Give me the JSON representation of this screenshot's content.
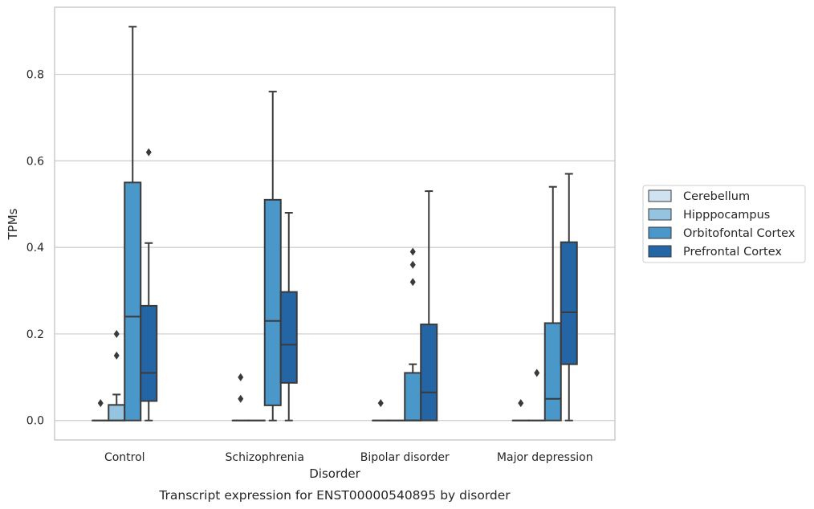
{
  "chart_data": {
    "type": "box",
    "caption": "Transcript expression for ENST00000540895 by disorder",
    "xlabel": "Disorder",
    "ylabel": "TPMs",
    "ylim": [
      -0.045,
      0.955
    ],
    "y_ticks": [
      0.0,
      0.2,
      0.4,
      0.6,
      0.8
    ],
    "y_tick_labels": [
      "0.0",
      "0.2",
      "0.4",
      "0.6",
      "0.8"
    ],
    "grid": "horizontal",
    "legend_position": "right",
    "categories": [
      "Control",
      "Schizophrenia",
      "Bipolar disorder",
      "Major depression"
    ],
    "series": [
      {
        "name": "Cerebellum",
        "color": "#d0e1f2",
        "boxes": [
          {
            "low": 0.0,
            "q1": 0.0,
            "median": 0.0,
            "q3": 0.0,
            "high": 0.0,
            "outliers": [
              0.04
            ]
          },
          {
            "low": 0.0,
            "q1": 0.0,
            "median": 0.0,
            "q3": 0.0,
            "high": 0.0,
            "outliers": [
              0.05,
              0.1
            ]
          },
          {
            "low": 0.0,
            "q1": 0.0,
            "median": 0.0,
            "q3": 0.0,
            "high": 0.0,
            "outliers": [
              0.04
            ]
          },
          {
            "low": 0.0,
            "q1": 0.0,
            "median": 0.0,
            "q3": 0.0,
            "high": 0.0,
            "outliers": [
              0.04
            ]
          }
        ]
      },
      {
        "name": "Hipppocampus",
        "color": "#94c4df",
        "boxes": [
          {
            "low": 0.0,
            "q1": 0.0,
            "median": 0.0,
            "q3": 0.036,
            "high": 0.06,
            "outliers": [
              0.15,
              0.2
            ]
          },
          {
            "low": 0.0,
            "q1": 0.0,
            "median": 0.0,
            "q3": 0.0,
            "high": 0.0,
            "outliers": []
          },
          {
            "low": 0.0,
            "q1": 0.0,
            "median": 0.0,
            "q3": 0.0,
            "high": 0.0,
            "outliers": []
          },
          {
            "low": 0.0,
            "q1": 0.0,
            "median": 0.0,
            "q3": 0.0,
            "high": 0.0,
            "outliers": [
              0.11
            ]
          }
        ]
      },
      {
        "name": "Orbitofontal Cortex",
        "color": "#4a98c9",
        "boxes": [
          {
            "low": 0.0,
            "q1": 0.0,
            "median": 0.24,
            "q3": 0.55,
            "high": 0.91,
            "outliers": []
          },
          {
            "low": 0.0,
            "q1": 0.035,
            "median": 0.23,
            "q3": 0.51,
            "high": 0.76,
            "outliers": []
          },
          {
            "low": 0.0,
            "q1": 0.0,
            "median": 0.0,
            "q3": 0.11,
            "high": 0.13,
            "outliers": [
              0.32,
              0.36,
              0.39
            ]
          },
          {
            "low": 0.0,
            "q1": 0.0,
            "median": 0.05,
            "q3": 0.225,
            "high": 0.54,
            "outliers": []
          }
        ]
      },
      {
        "name": "Prefrontal Cortex",
        "color": "#2465a6",
        "boxes": [
          {
            "low": 0.0,
            "q1": 0.045,
            "median": 0.11,
            "q3": 0.265,
            "high": 0.41,
            "outliers": [
              0.62
            ]
          },
          {
            "low": 0.0,
            "q1": 0.087,
            "median": 0.175,
            "q3": 0.297,
            "high": 0.48,
            "outliers": []
          },
          {
            "low": 0.0,
            "q1": 0.0,
            "median": 0.065,
            "q3": 0.222,
            "high": 0.53,
            "outliers": []
          },
          {
            "low": 0.0,
            "q1": 0.13,
            "median": 0.25,
            "q3": 0.412,
            "high": 0.57,
            "outliers": []
          }
        ]
      }
    ],
    "colors": {
      "box_edge": "#3a3a3a",
      "grid": "#cccccc",
      "frame": "#cccccc",
      "text": "#262626"
    }
  }
}
